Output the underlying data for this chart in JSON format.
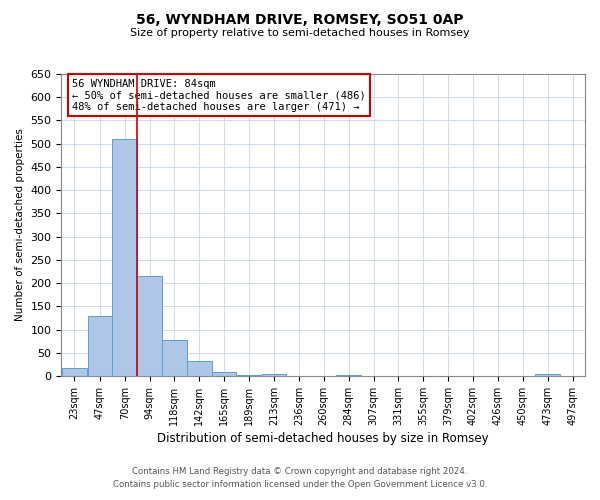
{
  "title": "56, WYNDHAM DRIVE, ROMSEY, SO51 0AP",
  "subtitle": "Size of property relative to semi-detached houses in Romsey",
  "xlabel": "Distribution of semi-detached houses by size in Romsey",
  "ylabel": "Number of semi-detached properties",
  "bar_labels": [
    "23sqm",
    "47sqm",
    "70sqm",
    "94sqm",
    "118sqm",
    "142sqm",
    "165sqm",
    "189sqm",
    "213sqm",
    "236sqm",
    "260sqm",
    "284sqm",
    "307sqm",
    "331sqm",
    "355sqm",
    "379sqm",
    "402sqm",
    "426sqm",
    "450sqm",
    "473sqm",
    "497sqm"
  ],
  "bar_values": [
    18,
    128,
    510,
    215,
    78,
    33,
    8,
    3,
    5,
    0,
    0,
    3,
    0,
    0,
    0,
    0,
    0,
    0,
    0,
    5,
    0
  ],
  "bar_color": "#aec6e8",
  "bar_edge_color": "#5a9fd4",
  "ylim": [
    0,
    650
  ],
  "yticks": [
    0,
    50,
    100,
    150,
    200,
    250,
    300,
    350,
    400,
    450,
    500,
    550,
    600,
    650
  ],
  "vline_color": "#cc0000",
  "vline_x_bin_edge": 3,
  "annotation_title": "56 WYNDHAM DRIVE: 84sqm",
  "annotation_line1": "← 50% of semi-detached houses are smaller (486)",
  "annotation_line2": "48% of semi-detached houses are larger (471) →",
  "annotation_box_color": "#cc0000",
  "footer_line1": "Contains HM Land Registry data © Crown copyright and database right 2024.",
  "footer_line2": "Contains public sector information licensed under the Open Government Licence v3.0.",
  "bg_color": "#ffffff",
  "grid_color": "#c8d4e8",
  "bin_edges": [
    11.5,
    35.5,
    58.5,
    81.5,
    104.5,
    127.5,
    150.5,
    173.5,
    196.5,
    219.5,
    242.5,
    265.5,
    288.5,
    311.5,
    334.5,
    357.5,
    380.5,
    403.5,
    426.5,
    449.5,
    472.5,
    495.5
  ]
}
